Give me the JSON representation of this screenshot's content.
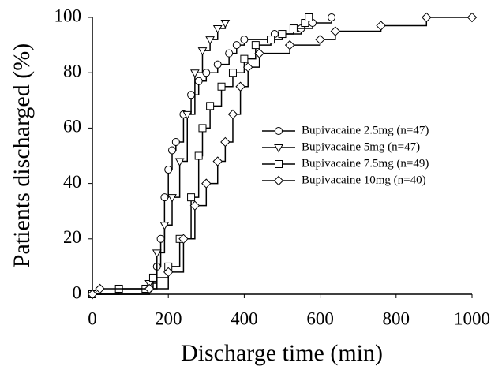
{
  "chart_data": {
    "type": "step",
    "xlabel": "Discharge time (min)",
    "ylabel": "Patients discharged (%)",
    "xlim": [
      0,
      1000
    ],
    "xticks": [
      0,
      200,
      400,
      600,
      800,
      1000
    ],
    "ylim": [
      0,
      100
    ],
    "yticks": [
      0,
      20,
      40,
      60,
      80,
      100
    ],
    "series": [
      {
        "name": "Bupivacaine 2.5mg (n=47)",
        "color": "#000000",
        "marker": "circle",
        "x": [
          0,
          150,
          170,
          180,
          190,
          200,
          210,
          220,
          240,
          260,
          280,
          300,
          330,
          360,
          380,
          400,
          480,
          550,
          580,
          630
        ],
        "values": [
          0,
          2,
          10,
          20,
          35,
          45,
          52,
          55,
          65,
          72,
          77,
          80,
          83,
          87,
          90,
          92,
          94,
          96,
          98,
          100
        ]
      },
      {
        "name": "Bupivacaine 5mg (n=47)",
        "color": "#000000",
        "marker": "triangle",
        "x": [
          0,
          150,
          170,
          190,
          210,
          230,
          250,
          270,
          290,
          310,
          330,
          350
        ],
        "values": [
          0,
          4,
          15,
          25,
          35,
          48,
          65,
          80,
          88,
          92,
          96,
          98
        ]
      },
      {
        "name": "Bupivacaine 7.5mg (n=49)",
        "color": "#000000",
        "marker": "square",
        "x": [
          0,
          70,
          140,
          160,
          200,
          230,
          260,
          280,
          290,
          310,
          340,
          370,
          400,
          430,
          470,
          500,
          530,
          560,
          570
        ],
        "values": [
          0,
          2,
          2,
          6,
          10,
          20,
          35,
          50,
          60,
          68,
          75,
          80,
          85,
          90,
          92,
          94,
          96,
          98,
          100
        ]
      },
      {
        "name": "Bupivacaine 10mg (n=40)",
        "color": "#000000",
        "marker": "diamond",
        "x": [
          0,
          20,
          150,
          200,
          240,
          270,
          300,
          330,
          350,
          370,
          390,
          410,
          440,
          520,
          600,
          640,
          760,
          880,
          1000
        ],
        "values": [
          0,
          2,
          2,
          8,
          20,
          32,
          40,
          48,
          55,
          65,
          75,
          82,
          87,
          90,
          92,
          95,
          97,
          100,
          100
        ]
      }
    ]
  }
}
